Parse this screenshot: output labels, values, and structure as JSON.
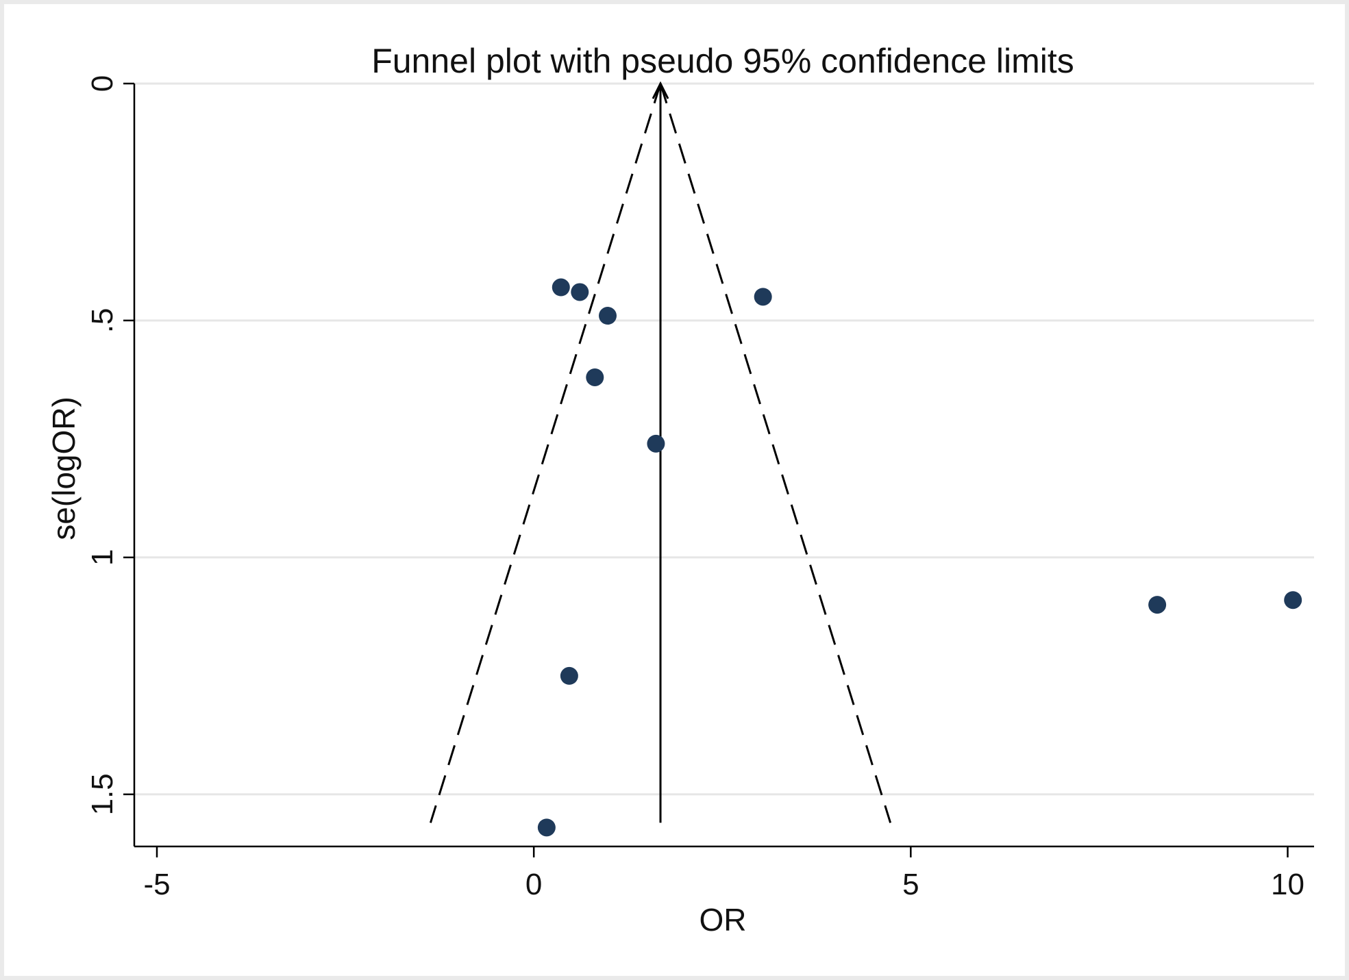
{
  "chart_data": {
    "type": "scatter",
    "title": "Funnel plot with pseudo 95% confidence limits",
    "xlabel": "OR",
    "ylabel": "se(logOR)",
    "xlim": [
      -5.3,
      10.35
    ],
    "ylim": [
      0,
      1.61
    ],
    "y_reversed": true,
    "x_ticks": [
      -5,
      0,
      5,
      10
    ],
    "x_tick_labels": [
      "-5",
      "0",
      "5",
      "10"
    ],
    "y_ticks": [
      0,
      0.5,
      1,
      1.5
    ],
    "y_tick_labels": [
      "0",
      ".5",
      "1",
      "1.5"
    ],
    "grid": "horizontal",
    "pooled_estimate": 1.68,
    "pooled_line_y_range": [
      0,
      1.56
    ],
    "pseudo_ci_lower": {
      "x": [
        1.68,
        -1.37
      ],
      "y": [
        0,
        1.56
      ]
    },
    "pseudo_ci_upper": {
      "x": [
        1.68,
        4.73
      ],
      "y": [
        0,
        1.56
      ]
    },
    "marker_color": "#1f3a5a",
    "points": [
      {
        "x": 0.36,
        "y": 0.43
      },
      {
        "x": 0.61,
        "y": 0.44
      },
      {
        "x": 0.98,
        "y": 0.49
      },
      {
        "x": 3.04,
        "y": 0.45
      },
      {
        "x": 0.81,
        "y": 0.62
      },
      {
        "x": 1.62,
        "y": 0.76
      },
      {
        "x": 8.27,
        "y": 1.1
      },
      {
        "x": 10.07,
        "y": 1.09
      },
      {
        "x": 0.47,
        "y": 1.25
      },
      {
        "x": 0.17,
        "y": 1.57
      }
    ]
  }
}
